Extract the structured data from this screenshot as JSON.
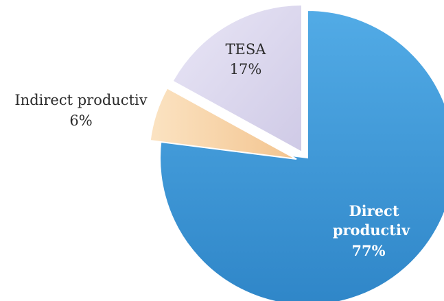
{
  "chart_data": {
    "type": "pie",
    "exploded": true,
    "slices": [
      {
        "label": "Direct productiv",
        "percent": 77,
        "value_label": "77%",
        "color": "#3a96d6"
      },
      {
        "label": "Indirect productiv",
        "percent": 6,
        "value_label": "6%",
        "color": "#f7d3a8"
      },
      {
        "label": "TESA",
        "percent": 17,
        "value_label": "17%",
        "color": "#ddd9ee"
      }
    ]
  }
}
